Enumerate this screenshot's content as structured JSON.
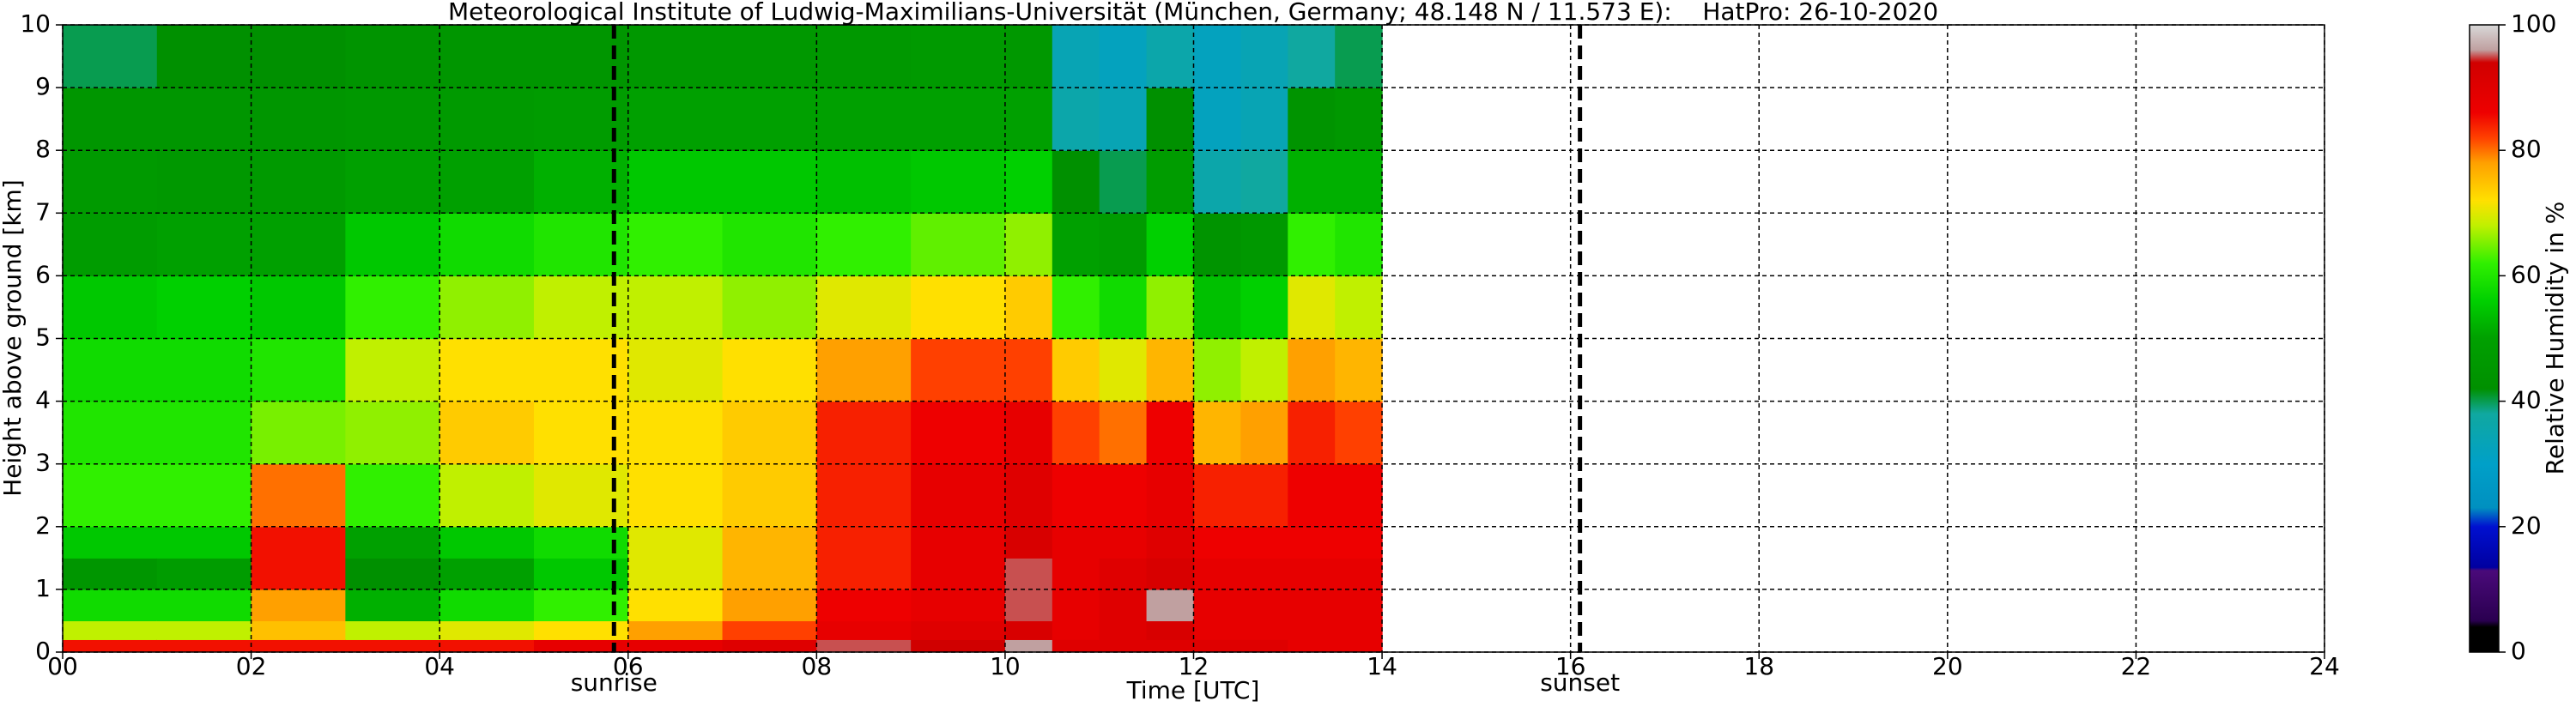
{
  "chart_data": {
    "type": "heatmap",
    "title": "Meteorological Institute of Ludwig-Maximilians-Universität (München, Germany; 48.148 N / 11.573 E):    HatPro: 26-10-2020",
    "xlabel": "Time [UTC]",
    "ylabel": "Height above ground [km]",
    "colorbar_label": "Relative Humidity in %",
    "x_edges": [
      0,
      1,
      2,
      3,
      4,
      5,
      6,
      7,
      8,
      9,
      10,
      10.5,
      11,
      11.5,
      12,
      12.5,
      13,
      13.5,
      14
    ],
    "y_edges": [
      0,
      0.2,
      0.5,
      1,
      1.5,
      2,
      3,
      4,
      5,
      6,
      7,
      8,
      9,
      10
    ],
    "values": [
      [
        85,
        68,
        58,
        45,
        55,
        62,
        60,
        58,
        55,
        48,
        47,
        45,
        40
      ],
      [
        85,
        68,
        58,
        48,
        55,
        62,
        60,
        58,
        56,
        50,
        46,
        45,
        42
      ],
      [
        85,
        75,
        78,
        85,
        85,
        80,
        65,
        60,
        55,
        50,
        47,
        45,
        42
      ],
      [
        85,
        68,
        52,
        42,
        50,
        62,
        66,
        68,
        62,
        55,
        50,
        46,
        44
      ],
      [
        85,
        70,
        58,
        50,
        55,
        68,
        74,
        72,
        66,
        58,
        50,
        47,
        45
      ],
      [
        88,
        72,
        62,
        55,
        58,
        70,
        72,
        72,
        68,
        60,
        52,
        48,
        45
      ],
      [
        88,
        78,
        72,
        70,
        70,
        72,
        72,
        70,
        68,
        62,
        55,
        50,
        46
      ],
      [
        90,
        82,
        78,
        76,
        76,
        74,
        74,
        72,
        66,
        60,
        55,
        50,
        46
      ],
      [
        95,
        88,
        86,
        84,
        84,
        84,
        84,
        78,
        70,
        62,
        54,
        50,
        46
      ],
      [
        94,
        90,
        88,
        88,
        88,
        88,
        86,
        82,
        72,
        64,
        55,
        50,
        47
      ],
      [
        96,
        92,
        95,
        95,
        92,
        90,
        88,
        82,
        74,
        66,
        56,
        50,
        46
      ],
      [
        90,
        88,
        88,
        88,
        88,
        86,
        82,
        74,
        62,
        50,
        42,
        36,
        34
      ],
      [
        90,
        90,
        90,
        90,
        88,
        86,
        80,
        70,
        58,
        48,
        40,
        34,
        32
      ],
      [
        90,
        92,
        96,
        92,
        90,
        88,
        86,
        76,
        66,
        56,
        48,
        42,
        36
      ],
      [
        90,
        88,
        88,
        88,
        86,
        84,
        76,
        66,
        54,
        44,
        36,
        32,
        32
      ],
      [
        90,
        88,
        88,
        88,
        86,
        84,
        78,
        68,
        56,
        46,
        38,
        34,
        34
      ],
      [
        88,
        88,
        88,
        88,
        86,
        86,
        84,
        78,
        70,
        62,
        52,
        44,
        38
      ],
      [
        88,
        88,
        88,
        88,
        86,
        86,
        82,
        76,
        68,
        60,
        52,
        46,
        40
      ]
    ],
    "colorscale": [
      [
        0,
        "#000000"
      ],
      [
        4,
        "#000000"
      ],
      [
        5,
        "#2a0050"
      ],
      [
        13,
        "#4a0a7a"
      ],
      [
        13.5,
        "#0000a0"
      ],
      [
        20,
        "#0010d0"
      ],
      [
        23,
        "#0090c0"
      ],
      [
        30,
        "#00a0c8"
      ],
      [
        38,
        "#10a8a0"
      ],
      [
        42,
        "#009000"
      ],
      [
        50,
        "#00a000"
      ],
      [
        56,
        "#00d000"
      ],
      [
        62,
        "#30f000"
      ],
      [
        68,
        "#c0f000"
      ],
      [
        72,
        "#ffe000"
      ],
      [
        78,
        "#ffa000"
      ],
      [
        82,
        "#ff4000"
      ],
      [
        86,
        "#ee0000"
      ],
      [
        94,
        "#d00000"
      ],
      [
        96,
        "#c0a0a0"
      ],
      [
        100,
        "#d8d8d8"
      ]
    ],
    "xlim": [
      0,
      24
    ],
    "ylim": [
      0,
      10
    ],
    "clim": [
      0,
      100
    ],
    "xticks": [
      {
        "value": 0,
        "label": "00"
      },
      {
        "value": 2,
        "label": "02"
      },
      {
        "value": 4,
        "label": "04"
      },
      {
        "value": 6,
        "label": "06"
      },
      {
        "value": 8,
        "label": "08"
      },
      {
        "value": 10,
        "label": "10"
      },
      {
        "value": 12,
        "label": "12"
      },
      {
        "value": 14,
        "label": "14"
      },
      {
        "value": 16,
        "label": "16"
      },
      {
        "value": 18,
        "label": "18"
      },
      {
        "value": 20,
        "label": "20"
      },
      {
        "value": 22,
        "label": "22"
      },
      {
        "value": 24,
        "label": "24"
      }
    ],
    "yticks": [
      0,
      1,
      2,
      3,
      4,
      5,
      6,
      7,
      8,
      9,
      10
    ],
    "cticks": [
      0,
      20,
      40,
      60,
      80,
      100
    ],
    "grid": true,
    "annotations": [
      {
        "text": "sunrise",
        "x": 5.85
      },
      {
        "text": "sunset",
        "x": 16.1
      }
    ]
  }
}
